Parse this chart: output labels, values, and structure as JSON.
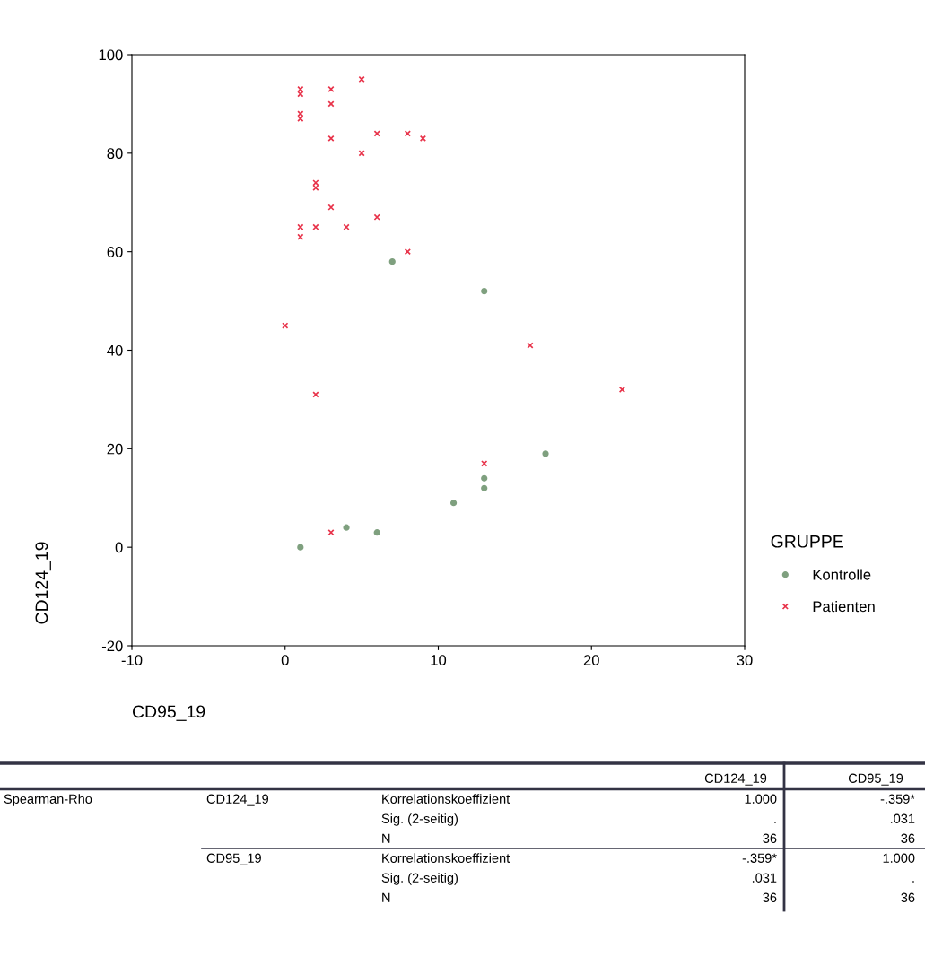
{
  "chart_data": {
    "type": "scatter",
    "xlabel": "CD95_19",
    "ylabel": "CD124_19",
    "legend_title": "GRUPPE",
    "legend": "right",
    "grid": false,
    "xlim": [
      -10,
      30
    ],
    "xticks": [
      -10,
      0,
      10,
      20,
      30
    ],
    "ylim": [
      -20,
      100
    ],
    "yticks": [
      -20,
      0,
      20,
      40,
      60,
      80,
      100
    ],
    "series": [
      {
        "name": "Kontrolle",
        "color": "#7fa07f",
        "marker": "circle",
        "x": [
          7,
          13,
          17,
          13,
          13,
          11,
          1,
          4,
          6
        ],
        "values": [
          58,
          52,
          19,
          14,
          12,
          9,
          0,
          4,
          3
        ]
      },
      {
        "name": "Patienten",
        "color": "#e8334a",
        "marker": "cross",
        "x": [
          0,
          1,
          1,
          1,
          1,
          1,
          1,
          2,
          2,
          2,
          2,
          3,
          3,
          3,
          3,
          3,
          4,
          5,
          5,
          6,
          6,
          8,
          8,
          9,
          13,
          16,
          22
        ],
        "values": [
          45,
          92,
          93,
          87,
          88,
          65,
          63,
          65,
          74,
          73,
          31,
          93,
          90,
          83,
          69,
          3,
          65,
          95,
          80,
          84,
          67,
          84,
          60,
          83,
          17,
          41,
          32
        ]
      }
    ],
    "annotations": [
      "CD124_19",
      "CD95_19",
      "Spearman-Rho",
      "CD124_19",
      "Korrelationskoeffizient",
      "1.000",
      "-.359*",
      "Sig. (2-seitig)",
      ".",
      ".031",
      "N",
      "36",
      "36",
      "CD95_19",
      "Korrelationskoeffizient",
      "-.359*",
      "1.000",
      "Sig. (2-seitig)",
      ".031",
      ".",
      "N",
      "36",
      "36"
    ]
  }
}
